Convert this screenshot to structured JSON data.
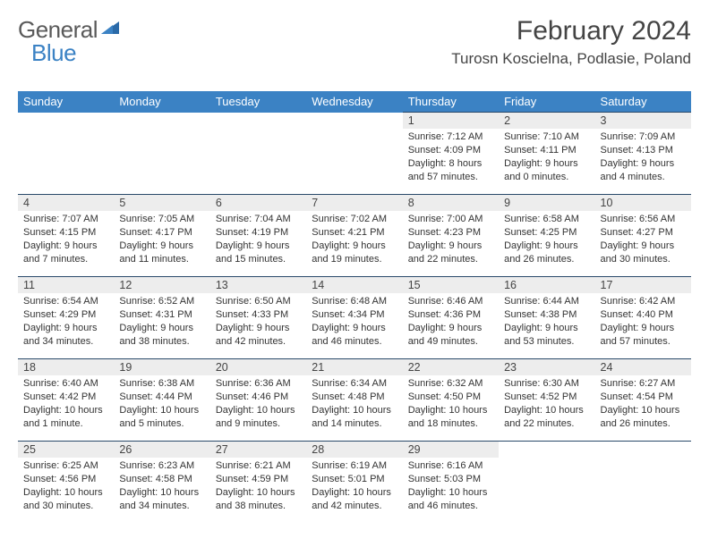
{
  "logo": {
    "part1": "General",
    "part2": "Blue"
  },
  "title": "February 2024",
  "location": "Turosn Koscielna, Podlasie, Poland",
  "colors": {
    "header_bg": "#3b82c4",
    "header_text": "#ffffff",
    "daynum_bg": "#ededed",
    "border": "#2a4a6a",
    "body_text": "#333333",
    "title_text": "#444444"
  },
  "weekdays": [
    "Sunday",
    "Monday",
    "Tuesday",
    "Wednesday",
    "Thursday",
    "Friday",
    "Saturday"
  ],
  "weeks": [
    [
      null,
      null,
      null,
      null,
      {
        "n": "1",
        "sunrise": "Sunrise: 7:12 AM",
        "sunset": "Sunset: 4:09 PM",
        "daylight": "Daylight: 8 hours and 57 minutes."
      },
      {
        "n": "2",
        "sunrise": "Sunrise: 7:10 AM",
        "sunset": "Sunset: 4:11 PM",
        "daylight": "Daylight: 9 hours and 0 minutes."
      },
      {
        "n": "3",
        "sunrise": "Sunrise: 7:09 AM",
        "sunset": "Sunset: 4:13 PM",
        "daylight": "Daylight: 9 hours and 4 minutes."
      }
    ],
    [
      {
        "n": "4",
        "sunrise": "Sunrise: 7:07 AM",
        "sunset": "Sunset: 4:15 PM",
        "daylight": "Daylight: 9 hours and 7 minutes."
      },
      {
        "n": "5",
        "sunrise": "Sunrise: 7:05 AM",
        "sunset": "Sunset: 4:17 PM",
        "daylight": "Daylight: 9 hours and 11 minutes."
      },
      {
        "n": "6",
        "sunrise": "Sunrise: 7:04 AM",
        "sunset": "Sunset: 4:19 PM",
        "daylight": "Daylight: 9 hours and 15 minutes."
      },
      {
        "n": "7",
        "sunrise": "Sunrise: 7:02 AM",
        "sunset": "Sunset: 4:21 PM",
        "daylight": "Daylight: 9 hours and 19 minutes."
      },
      {
        "n": "8",
        "sunrise": "Sunrise: 7:00 AM",
        "sunset": "Sunset: 4:23 PM",
        "daylight": "Daylight: 9 hours and 22 minutes."
      },
      {
        "n": "9",
        "sunrise": "Sunrise: 6:58 AM",
        "sunset": "Sunset: 4:25 PM",
        "daylight": "Daylight: 9 hours and 26 minutes."
      },
      {
        "n": "10",
        "sunrise": "Sunrise: 6:56 AM",
        "sunset": "Sunset: 4:27 PM",
        "daylight": "Daylight: 9 hours and 30 minutes."
      }
    ],
    [
      {
        "n": "11",
        "sunrise": "Sunrise: 6:54 AM",
        "sunset": "Sunset: 4:29 PM",
        "daylight": "Daylight: 9 hours and 34 minutes."
      },
      {
        "n": "12",
        "sunrise": "Sunrise: 6:52 AM",
        "sunset": "Sunset: 4:31 PM",
        "daylight": "Daylight: 9 hours and 38 minutes."
      },
      {
        "n": "13",
        "sunrise": "Sunrise: 6:50 AM",
        "sunset": "Sunset: 4:33 PM",
        "daylight": "Daylight: 9 hours and 42 minutes."
      },
      {
        "n": "14",
        "sunrise": "Sunrise: 6:48 AM",
        "sunset": "Sunset: 4:34 PM",
        "daylight": "Daylight: 9 hours and 46 minutes."
      },
      {
        "n": "15",
        "sunrise": "Sunrise: 6:46 AM",
        "sunset": "Sunset: 4:36 PM",
        "daylight": "Daylight: 9 hours and 49 minutes."
      },
      {
        "n": "16",
        "sunrise": "Sunrise: 6:44 AM",
        "sunset": "Sunset: 4:38 PM",
        "daylight": "Daylight: 9 hours and 53 minutes."
      },
      {
        "n": "17",
        "sunrise": "Sunrise: 6:42 AM",
        "sunset": "Sunset: 4:40 PM",
        "daylight": "Daylight: 9 hours and 57 minutes."
      }
    ],
    [
      {
        "n": "18",
        "sunrise": "Sunrise: 6:40 AM",
        "sunset": "Sunset: 4:42 PM",
        "daylight": "Daylight: 10 hours and 1 minute."
      },
      {
        "n": "19",
        "sunrise": "Sunrise: 6:38 AM",
        "sunset": "Sunset: 4:44 PM",
        "daylight": "Daylight: 10 hours and 5 minutes."
      },
      {
        "n": "20",
        "sunrise": "Sunrise: 6:36 AM",
        "sunset": "Sunset: 4:46 PM",
        "daylight": "Daylight: 10 hours and 9 minutes."
      },
      {
        "n": "21",
        "sunrise": "Sunrise: 6:34 AM",
        "sunset": "Sunset: 4:48 PM",
        "daylight": "Daylight: 10 hours and 14 minutes."
      },
      {
        "n": "22",
        "sunrise": "Sunrise: 6:32 AM",
        "sunset": "Sunset: 4:50 PM",
        "daylight": "Daylight: 10 hours and 18 minutes."
      },
      {
        "n": "23",
        "sunrise": "Sunrise: 6:30 AM",
        "sunset": "Sunset: 4:52 PM",
        "daylight": "Daylight: 10 hours and 22 minutes."
      },
      {
        "n": "24",
        "sunrise": "Sunrise: 6:27 AM",
        "sunset": "Sunset: 4:54 PM",
        "daylight": "Daylight: 10 hours and 26 minutes."
      }
    ],
    [
      {
        "n": "25",
        "sunrise": "Sunrise: 6:25 AM",
        "sunset": "Sunset: 4:56 PM",
        "daylight": "Daylight: 10 hours and 30 minutes."
      },
      {
        "n": "26",
        "sunrise": "Sunrise: 6:23 AM",
        "sunset": "Sunset: 4:58 PM",
        "daylight": "Daylight: 10 hours and 34 minutes."
      },
      {
        "n": "27",
        "sunrise": "Sunrise: 6:21 AM",
        "sunset": "Sunset: 4:59 PM",
        "daylight": "Daylight: 10 hours and 38 minutes."
      },
      {
        "n": "28",
        "sunrise": "Sunrise: 6:19 AM",
        "sunset": "Sunset: 5:01 PM",
        "daylight": "Daylight: 10 hours and 42 minutes."
      },
      {
        "n": "29",
        "sunrise": "Sunrise: 6:16 AM",
        "sunset": "Sunset: 5:03 PM",
        "daylight": "Daylight: 10 hours and 46 minutes."
      },
      null,
      null
    ]
  ]
}
